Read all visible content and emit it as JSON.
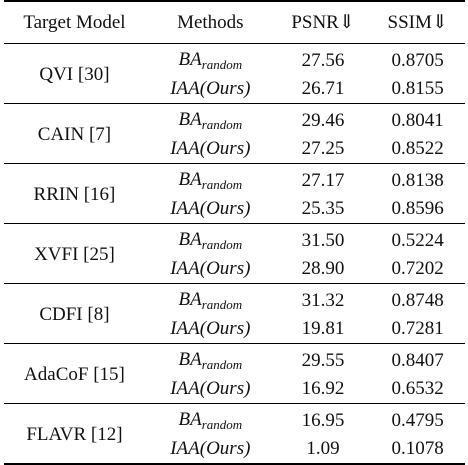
{
  "headers": {
    "target_model": "Target Model",
    "methods": "Methods",
    "psnr": "PSNR⇓",
    "ssim": "SSIM⇓"
  },
  "method_labels": {
    "random_main": "BA",
    "random_sub": "random",
    "ours": "IAA(Ours)"
  },
  "rows": [
    {
      "model": "QVI [30]",
      "random": {
        "psnr": "27.56",
        "ssim": "0.8705"
      },
      "ours": {
        "psnr": "26.71",
        "ssim": "0.8155"
      }
    },
    {
      "model": "CAIN [7]",
      "random": {
        "psnr": "29.46",
        "ssim": "0.8041"
      },
      "ours": {
        "psnr": "27.25",
        "ssim": "0.8522"
      }
    },
    {
      "model": "RRIN [16]",
      "random": {
        "psnr": "27.17",
        "ssim": "0.8138"
      },
      "ours": {
        "psnr": "25.35",
        "ssim": "0.8596"
      }
    },
    {
      "model": "XVFI [25]",
      "random": {
        "psnr": "31.50",
        "ssim": "0.5224"
      },
      "ours": {
        "psnr": "28.90",
        "ssim": "0.7202"
      }
    },
    {
      "model": "CDFI [8]",
      "random": {
        "psnr": "31.32",
        "ssim": "0.8748"
      },
      "ours": {
        "psnr": "19.81",
        "ssim": "0.7281"
      }
    },
    {
      "model": "AdaCoF [15]",
      "random": {
        "psnr": "29.55",
        "ssim": "0.8407"
      },
      "ours": {
        "psnr": "16.92",
        "ssim": "0.6532"
      }
    },
    {
      "model": "FLAVR [12]",
      "random": {
        "psnr": "16.95",
        "ssim": "0.4795"
      },
      "ours": {
        "psnr": "1.09",
        "ssim": "0.1078"
      }
    }
  ]
}
